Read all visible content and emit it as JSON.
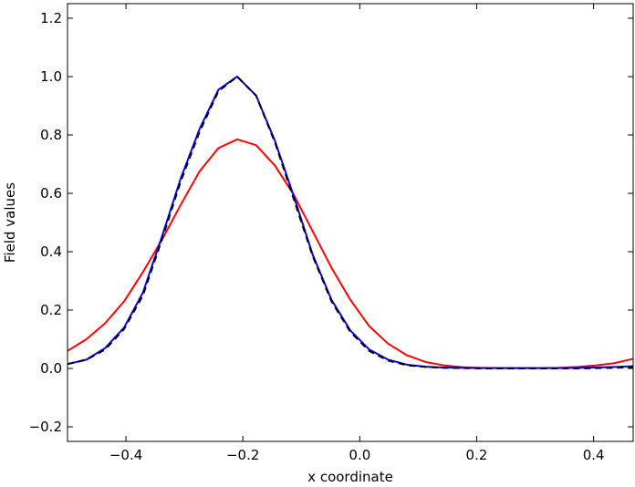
{
  "chart_data": {
    "type": "line",
    "title": "",
    "xlabel": "x coordinate",
    "ylabel": "Field values",
    "xlim": [
      -0.5,
      0.4677
    ],
    "ylim": [
      -0.25,
      1.25
    ],
    "xticks": [
      -0.4,
      -0.2,
      0.0,
      0.2,
      0.4
    ],
    "xtick_labels": [
      "−0.4",
      "−0.2",
      "0.0",
      "0.2",
      "0.4"
    ],
    "yticks": [
      -0.2,
      0.0,
      0.2,
      0.4,
      0.6,
      0.8,
      1.0,
      1.2
    ],
    "ytick_labels": [
      "−0.2",
      "0.0",
      "0.2",
      "0.4",
      "0.6",
      "0.8",
      "1.0",
      "1.2"
    ],
    "grid": false,
    "legend": "none",
    "x": [
      -0.5,
      -0.4677,
      -0.4355,
      -0.4032,
      -0.371,
      -0.3387,
      -0.3065,
      -0.2742,
      -0.2419,
      -0.2097,
      -0.1774,
      -0.1452,
      -0.1129,
      -0.0806,
      -0.0484,
      -0.0161,
      0.0161,
      0.0484,
      0.0806,
      0.1129,
      0.1452,
      0.1774,
      0.2097,
      0.2419,
      0.2742,
      0.3065,
      0.3387,
      0.371,
      0.4032,
      0.4355,
      0.4677
    ],
    "series": [
      {
        "color": "#ff0000",
        "style": "solid",
        "values": [
          0.06,
          0.1,
          0.155,
          0.23,
          0.33,
          0.44,
          0.56,
          0.675,
          0.755,
          0.785,
          0.765,
          0.695,
          0.595,
          0.47,
          0.345,
          0.235,
          0.145,
          0.085,
          0.045,
          0.022,
          0.01,
          0.004,
          0.002,
          0.001,
          0.001,
          0.001,
          0.002,
          0.005,
          0.01,
          0.018,
          0.033
        ]
      },
      {
        "color": "#0000ff",
        "style": "solid",
        "values": [
          0.015,
          0.03,
          0.07,
          0.14,
          0.26,
          0.45,
          0.65,
          0.82,
          0.955,
          1.0,
          0.935,
          0.78,
          0.59,
          0.39,
          0.235,
          0.13,
          0.065,
          0.03,
          0.013,
          0.006,
          0.003,
          0.002,
          0.001,
          0.001,
          0.001,
          0.001,
          0.001,
          0.002,
          0.003,
          0.005,
          0.008
        ]
      },
      {
        "color": "#000000",
        "style": "dashed",
        "values": [
          0.015,
          0.03,
          0.065,
          0.135,
          0.25,
          0.44,
          0.64,
          0.81,
          0.95,
          1.0,
          0.935,
          0.775,
          0.58,
          0.385,
          0.23,
          0.125,
          0.06,
          0.027,
          0.011,
          0.005,
          0.002,
          0.001,
          0.0,
          0.0,
          0.0,
          0.0,
          0.0,
          0.0,
          0.001,
          0.002,
          0.004
        ]
      }
    ]
  }
}
